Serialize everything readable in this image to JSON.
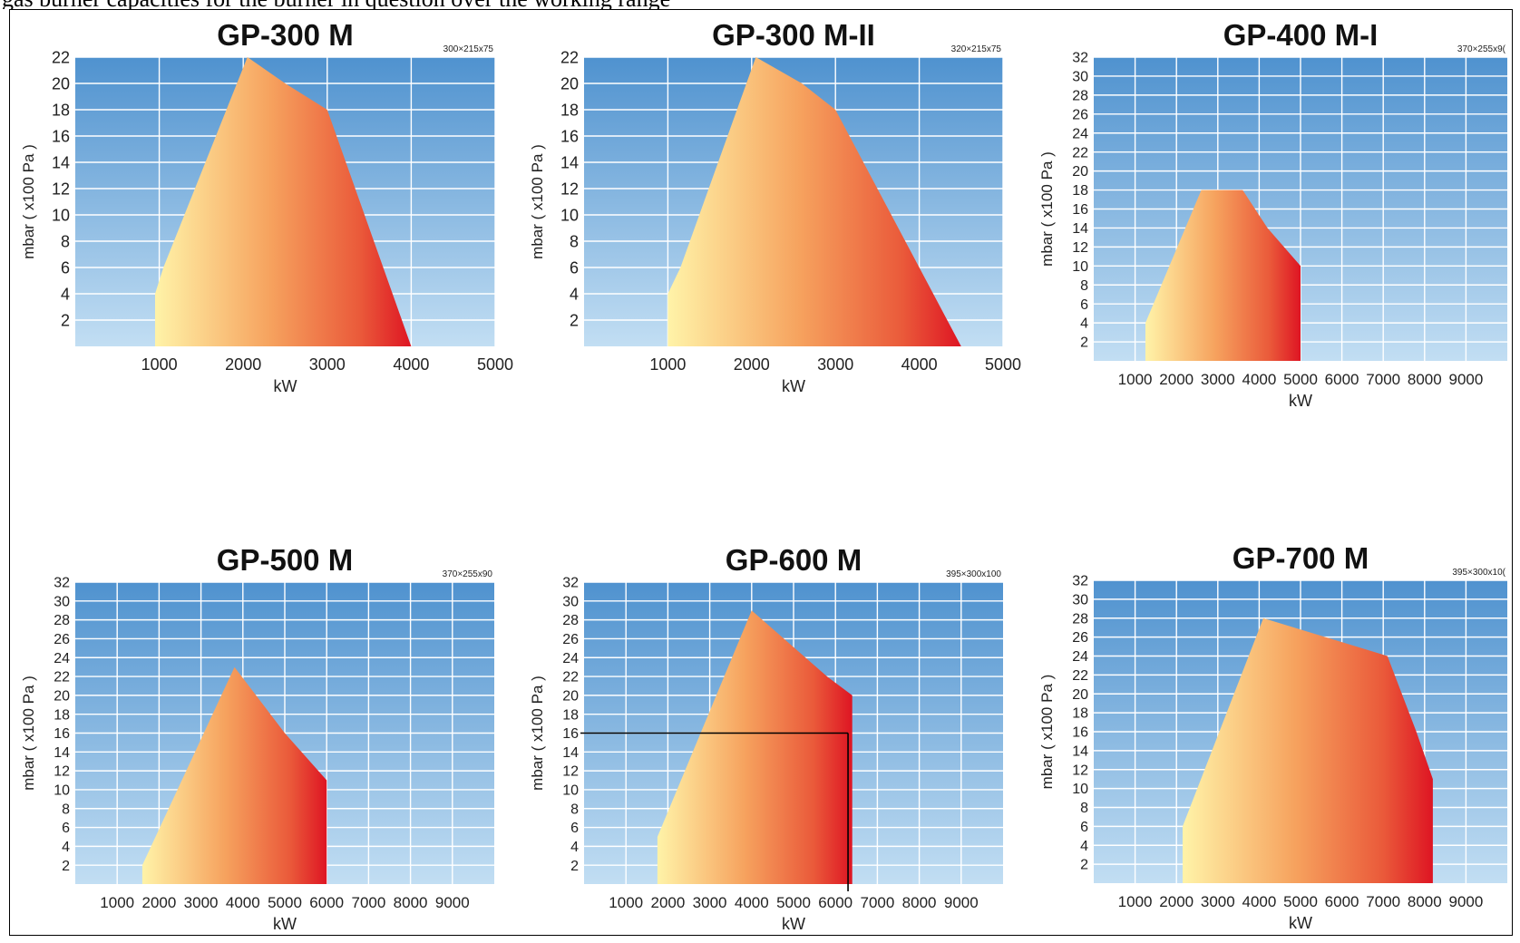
{
  "caption": "gas burner capacities for the burner in question over the working range",
  "chart_data": [
    {
      "type": "area",
      "title": "GP-300 M",
      "size_note": "300×215x75",
      "xlabel": "kW",
      "ylabel": "mbar ( x100 Pa )",
      "xlim": [
        0,
        5000
      ],
      "ylim": [
        0,
        22
      ],
      "xticks": [
        1000,
        2000,
        3000,
        4000,
        5000
      ],
      "yticks": [
        2,
        4,
        6,
        8,
        10,
        12,
        14,
        16,
        18,
        20,
        22
      ],
      "x": [
        950,
        950,
        1050,
        2050,
        2500,
        3000,
        4000
      ],
      "y": [
        0,
        4,
        6,
        22,
        20,
        18,
        0
      ]
    },
    {
      "type": "area",
      "title": "GP-300 M-II",
      "size_note": "320×215x75",
      "xlabel": "kW",
      "ylabel": "mbar ( x100 Pa )",
      "xlim": [
        0,
        5000
      ],
      "ylim": [
        0,
        22
      ],
      "xticks": [
        1000,
        2000,
        3000,
        4000,
        5000
      ],
      "yticks": [
        2,
        4,
        6,
        8,
        10,
        12,
        14,
        16,
        18,
        20,
        22
      ],
      "x": [
        1000,
        1000,
        1150,
        2050,
        2600,
        3000,
        4500
      ],
      "y": [
        0,
        4,
        6,
        22,
        20,
        18,
        0
      ]
    },
    {
      "type": "area",
      "title": "GP-400 M-I",
      "size_note": "370×255x9(",
      "xlabel": "kW",
      "ylabel": "mbar ( x100 Pa )",
      "xlim": [
        0,
        10000
      ],
      "ylim": [
        0,
        32
      ],
      "xticks": [
        1000,
        2000,
        3000,
        4000,
        5000,
        6000,
        7000,
        8000,
        9000
      ],
      "yticks": [
        2,
        4,
        6,
        8,
        10,
        12,
        14,
        16,
        18,
        20,
        22,
        24,
        26,
        28,
        30,
        32
      ],
      "x": [
        1250,
        1250,
        2600,
        3600,
        4200,
        5000,
        5000
      ],
      "y": [
        0,
        4,
        18,
        18,
        14,
        10,
        0
      ]
    },
    {
      "type": "area",
      "title": "GP-500 M",
      "size_note": "370×255x90",
      "xlabel": "kW",
      "ylabel": "mbar ( x100 Pa )",
      "xlim": [
        0,
        10000
      ],
      "ylim": [
        0,
        32
      ],
      "xticks": [
        1000,
        2000,
        3000,
        4000,
        5000,
        6000,
        7000,
        8000,
        9000
      ],
      "yticks": [
        2,
        4,
        6,
        8,
        10,
        12,
        14,
        16,
        18,
        20,
        22,
        24,
        26,
        28,
        30,
        32
      ],
      "x": [
        1600,
        1600,
        3800,
        5000,
        6000,
        6000
      ],
      "y": [
        0,
        2,
        23,
        16,
        11,
        0
      ]
    },
    {
      "type": "area",
      "title": "GP-600 M",
      "size_note": "395×300x100",
      "xlabel": "kW",
      "ylabel": "mbar ( x100 Pa )",
      "xlim": [
        0,
        10000
      ],
      "ylim": [
        0,
        32
      ],
      "xticks": [
        1000,
        2000,
        3000,
        4000,
        5000,
        6000,
        7000,
        8000,
        9000
      ],
      "yticks": [
        2,
        4,
        6,
        8,
        10,
        12,
        14,
        16,
        18,
        20,
        22,
        24,
        26,
        28,
        30,
        32
      ],
      "x": [
        1750,
        1750,
        4000,
        5800,
        6400,
        6400
      ],
      "y": [
        0,
        5,
        29,
        22,
        20,
        0
      ],
      "reference_point": {
        "x": 6300,
        "y": 16
      }
    },
    {
      "type": "area",
      "title": "GP-700 M",
      "size_note": "395×300x10(",
      "xlabel": "kW",
      "ylabel": "mbar ( x100 Pa )",
      "xlim": [
        0,
        10000
      ],
      "ylim": [
        0,
        32
      ],
      "xticks": [
        1000,
        2000,
        3000,
        4000,
        5000,
        6000,
        7000,
        8000,
        9000
      ],
      "yticks": [
        2,
        4,
        6,
        8,
        10,
        12,
        14,
        16,
        18,
        20,
        22,
        24,
        26,
        28,
        30,
        32
      ],
      "x": [
        2150,
        2150,
        4100,
        7100,
        7800,
        8200,
        8200
      ],
      "y": [
        0,
        6,
        28,
        24,
        16,
        11,
        0
      ]
    }
  ]
}
